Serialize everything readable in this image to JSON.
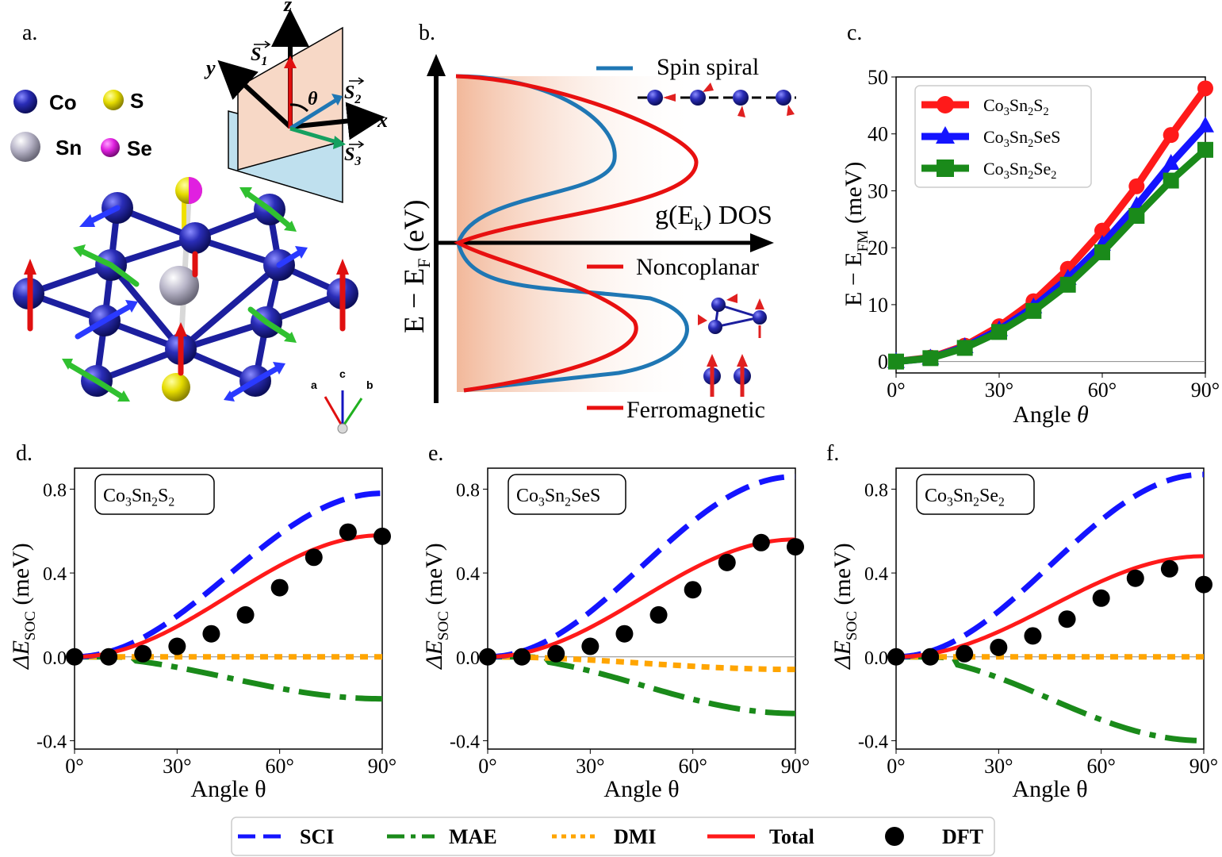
{
  "figure": {
    "panel_labels": {
      "a": "a.",
      "b": "b.",
      "c": "c.",
      "d": "d.",
      "e": "e.",
      "f": "f."
    }
  },
  "panel_a": {
    "legend": [
      {
        "label": "Co",
        "color": "#1c1f9e"
      },
      {
        "label": "S",
        "color": "#e8e000"
      },
      {
        "label": "Sn",
        "color": "#b8b5c8"
      },
      {
        "label": "Se",
        "color": "#e020e0"
      }
    ],
    "axes": {
      "z": "z",
      "y": "y",
      "x": "x",
      "theta": "θ"
    },
    "spins": [
      {
        "symbol": "S",
        "subscript": "1",
        "color": "#e01010"
      },
      {
        "symbol": "S",
        "subscript": "2",
        "color": "#1f77b4"
      },
      {
        "symbol": "S",
        "subscript": "3",
        "color": "#15a060"
      }
    ],
    "lattice_vectors": [
      "a",
      "c",
      "b"
    ]
  },
  "panel_b": {
    "ylabel": "E − E",
    "ylabel_sub": "F",
    "ylabel_unit": "(eV)",
    "xlabel": "g(E",
    "xlabel_sub": "k",
    "xlabel_rest": ") DOS",
    "legend": {
      "spin_spiral": {
        "label": "Spin spiral",
        "color": "#1f77b4"
      },
      "noncoplanar": {
        "label": "Noncoplanar",
        "color": "#e81010"
      },
      "ferromagnetic": {
        "label": "Ferromagnetic",
        "color": "#e81010"
      }
    }
  },
  "chart_data": [
    {
      "id": "c",
      "type": "line",
      "xlabel": "Angle θ",
      "ylabel": "E − E",
      "ylabel_sub": "FM",
      "ylabel_unit": "(meV)",
      "x": [
        0,
        10,
        20,
        30,
        40,
        50,
        60,
        70,
        80,
        90
      ],
      "xlim": [
        0,
        90
      ],
      "ylim": [
        -2,
        50
      ],
      "xticks": [
        0,
        30,
        60,
        90
      ],
      "xtick_labels": [
        "0°",
        "30°",
        "60°",
        "90°"
      ],
      "yticks": [
        0,
        10,
        20,
        30,
        40,
        50
      ],
      "ytick_labels": [
        "0",
        "10",
        "20",
        "30",
        "40",
        "50"
      ],
      "series": [
        {
          "name": "Co3Sn2S2",
          "label": [
            "Co",
            "3",
            "Sn",
            "2",
            "S",
            "2"
          ],
          "color": "#ff1a1a",
          "marker": "circle",
          "values": [
            0,
            0.7,
            2.8,
            6.2,
            10.6,
            16.3,
            23.0,
            30.8,
            39.8,
            48.0
          ]
        },
        {
          "name": "Co3Sn2SeS",
          "label": [
            "Co",
            "3",
            "Sn",
            "2",
            "SeS",
            ""
          ],
          "color": "#1414ff",
          "marker": "triangle",
          "values": [
            0,
            0.6,
            2.6,
            5.6,
            9.6,
            14.6,
            20.6,
            27.4,
            34.8,
            41.4
          ]
        },
        {
          "name": "Co3Sn2Se2",
          "label": [
            "Co",
            "3",
            "Sn",
            "2",
            "Se",
            "2"
          ],
          "color": "#1a8a1a",
          "marker": "square",
          "values": [
            0,
            0.6,
            2.4,
            5.2,
            8.9,
            13.5,
            19.2,
            25.6,
            31.8,
            37.2
          ]
        }
      ]
    },
    {
      "id": "d",
      "type": "line",
      "title_box": [
        "Co",
        "3",
        "Sn",
        "2",
        "S",
        "2"
      ],
      "xlabel": "Angle θ",
      "ylabel_prefix": "ΔE",
      "ylabel_sub": "SOC",
      "ylabel_unit": "(meV)",
      "xlim": [
        0,
        90
      ],
      "ylim": [
        -0.44,
        0.9
      ],
      "xticks": [
        0,
        30,
        60,
        90
      ],
      "xtick_labels": [
        "0°",
        "30°",
        "60°",
        "90°"
      ],
      "yticks": [
        -0.4,
        0.0,
        0.4,
        0.8
      ],
      "ytick_labels": [
        "-0.4",
        "0.0",
        "0.4",
        "0.8"
      ],
      "amplitudes": {
        "SCI": 0.78,
        "MAE": -0.2,
        "DMI": 0.0,
        "Total": 0.58
      },
      "dft": {
        "x": [
          0,
          10,
          20,
          30,
          40,
          50,
          60,
          70,
          80,
          90
        ],
        "y": [
          0.0,
          0.0,
          0.015,
          0.05,
          0.11,
          0.2,
          0.33,
          0.475,
          0.595,
          0.575
        ]
      }
    },
    {
      "id": "e",
      "type": "line",
      "title_box": [
        "Co",
        "3",
        "Sn",
        "2",
        "SeS",
        ""
      ],
      "xlabel": "Angle θ",
      "ylabel_prefix": "ΔE",
      "ylabel_sub": "SOC",
      "ylabel_unit": "(meV)",
      "xlim": [
        0,
        90
      ],
      "ylim": [
        -0.44,
        0.9
      ],
      "xticks": [
        0,
        30,
        60,
        90
      ],
      "xtick_labels": [
        "0°",
        "30°",
        "60°",
        "90°"
      ],
      "yticks": [
        -0.4,
        0.0,
        0.4,
        0.8
      ],
      "ytick_labels": [
        "-0.4",
        "0.0",
        "0.4",
        "0.8"
      ],
      "amplitudes": {
        "SCI": 0.86,
        "MAE": -0.27,
        "DMI": -0.06,
        "Total": 0.56
      },
      "dft": {
        "x": [
          0,
          10,
          20,
          30,
          40,
          50,
          60,
          70,
          80,
          90
        ],
        "y": [
          0.0,
          0.0,
          0.015,
          0.05,
          0.11,
          0.2,
          0.32,
          0.45,
          0.545,
          0.525
        ]
      }
    },
    {
      "id": "f",
      "type": "line",
      "title_box": [
        "Co",
        "3",
        "Sn",
        "2",
        "Se",
        "2"
      ],
      "xlabel": "Angle θ",
      "ylabel_prefix": "ΔE",
      "ylabel_sub": "SOC",
      "ylabel_unit": "(meV)",
      "xlim": [
        0,
        90
      ],
      "ylim": [
        -0.44,
        0.9
      ],
      "xticks": [
        0,
        30,
        60,
        90
      ],
      "xtick_labels": [
        "0°",
        "30°",
        "60°",
        "90°"
      ],
      "yticks": [
        -0.4,
        0.0,
        0.4,
        0.8
      ],
      "ytick_labels": [
        "-0.4",
        "0.0",
        "0.4",
        "0.8"
      ],
      "amplitudes": {
        "SCI": 0.87,
        "MAE": -0.4,
        "DMI": 0.0,
        "Total": 0.48
      },
      "dft": {
        "x": [
          0,
          10,
          20,
          30,
          40,
          50,
          60,
          70,
          80,
          90
        ],
        "y": [
          0.0,
          0.0,
          0.015,
          0.045,
          0.1,
          0.18,
          0.28,
          0.375,
          0.42,
          0.345
        ]
      }
    }
  ],
  "shared_legend": [
    {
      "key": "SCI",
      "label": "SCI",
      "color": "#1414ff",
      "style": "dashed"
    },
    {
      "key": "MAE",
      "label": "MAE",
      "color": "#1a8a1a",
      "style": "dashdot"
    },
    {
      "key": "DMI",
      "label": "DMI",
      "color": "#ffa500",
      "style": "dotted"
    },
    {
      "key": "Total",
      "label": "Total",
      "color": "#ff1a1a",
      "style": "solid"
    },
    {
      "key": "DFT",
      "label": "DFT",
      "color": "#000000",
      "style": "marker"
    }
  ]
}
